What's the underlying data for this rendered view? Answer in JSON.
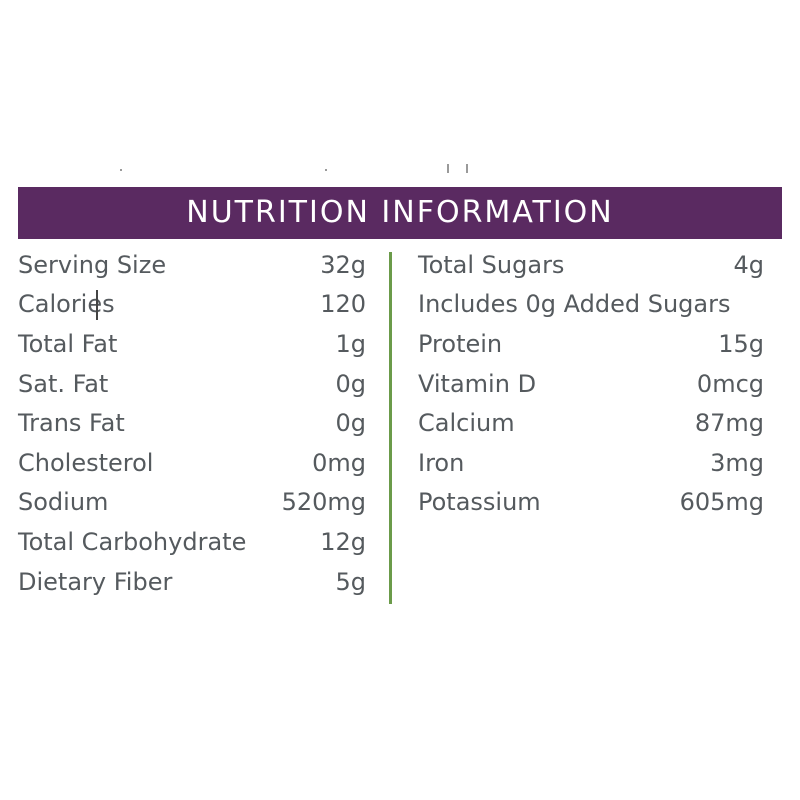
{
  "header": {
    "title": "NUTRITION INFORMATION"
  },
  "colors": {
    "header_bg": "#5a2a61",
    "header_text": "#ffffff",
    "divider": "#6b9b4a",
    "body_text": "#555a5e"
  },
  "left_column": [
    {
      "label": "Serving Size",
      "value": "32g"
    },
    {
      "label": "Calories",
      "value": "120"
    },
    {
      "label": "Total Fat",
      "value": "1g"
    },
    {
      "label": "Sat. Fat",
      "value": "0g"
    },
    {
      "label": "Trans Fat",
      "value": "0g"
    },
    {
      "label": "Cholesterol",
      "value": "0mg"
    },
    {
      "label": "Sodium",
      "value": "520mg"
    },
    {
      "label": "Total Carbohydrate",
      "value": "12g"
    },
    {
      "label": "Dietary Fiber",
      "value": "5g"
    }
  ],
  "right_column": [
    {
      "label": "Total Sugars",
      "value": "4g"
    },
    {
      "label": "Includes 0g Added Sugars",
      "value": ""
    },
    {
      "label": "Protein",
      "value": "15g"
    },
    {
      "label": "Vitamin D",
      "value": "0mcg"
    },
    {
      "label": "Calcium",
      "value": "87mg"
    },
    {
      "label": "Iron",
      "value": "3mg"
    },
    {
      "label": "Potassium",
      "value": "605mg"
    }
  ]
}
